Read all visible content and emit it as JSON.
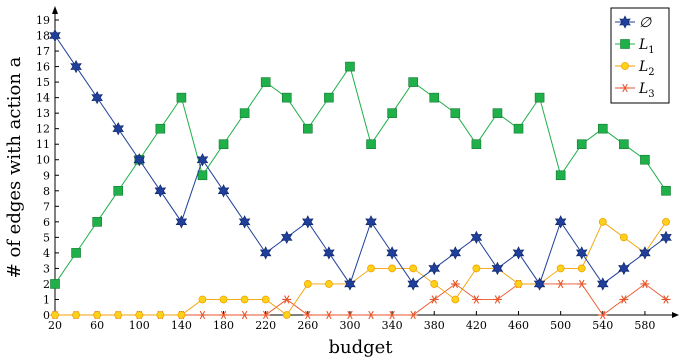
{
  "chart_data": {
    "type": "line",
    "xlabel": "budget",
    "ylabel": "# of edges with action a",
    "x": [
      20,
      40,
      60,
      80,
      100,
      120,
      140,
      160,
      180,
      200,
      220,
      240,
      260,
      280,
      300,
      320,
      340,
      360,
      380,
      400,
      420,
      440,
      460,
      480,
      500,
      520,
      540,
      560,
      580,
      600
    ],
    "xticks": [
      "20",
      "60",
      "100",
      "140",
      "180",
      "220",
      "260",
      "300",
      "340",
      "380",
      "420",
      "460",
      "500",
      "540",
      "580"
    ],
    "xlim": [
      20,
      600
    ],
    "ylim": [
      0,
      19
    ],
    "yticks": [
      "0",
      "1",
      "2",
      "3",
      "4",
      "5",
      "6",
      "7",
      "8",
      "9",
      "10",
      "11",
      "12",
      "13",
      "14",
      "15",
      "16",
      "17",
      "18",
      "19"
    ],
    "legend_position": "top-right",
    "series": [
      {
        "name": "∅",
        "color": "#1f3f9a",
        "marker": "star",
        "values": [
          18,
          16,
          14,
          12,
          10,
          8,
          6,
          10,
          8,
          6,
          4,
          5,
          6,
          4,
          2,
          6,
          4,
          2,
          3,
          4,
          5,
          3,
          4,
          2,
          6,
          4,
          2,
          3,
          4,
          5
        ]
      },
      {
        "name": "L1",
        "color": "#1fb04a",
        "marker": "square",
        "values": [
          2,
          4,
          6,
          8,
          10,
          12,
          14,
          9,
          11,
          13,
          15,
          14,
          12,
          14,
          16,
          11,
          13,
          15,
          14,
          13,
          11,
          13,
          12,
          14,
          9,
          11,
          12,
          11,
          10,
          8
        ]
      },
      {
        "name": "L2",
        "color": "#f2a100",
        "marker": "circle",
        "values": [
          0,
          0,
          0,
          0,
          0,
          0,
          0,
          1,
          1,
          1,
          1,
          0,
          2,
          2,
          2,
          3,
          3,
          3,
          2,
          1,
          3,
          3,
          2,
          2,
          3,
          3,
          6,
          5,
          4,
          6
        ]
      },
      {
        "name": "L3",
        "color": "#e8552a",
        "marker": "asterisk",
        "values": [
          0,
          0,
          0,
          0,
          0,
          0,
          0,
          0,
          0,
          0,
          0,
          1,
          0,
          0,
          0,
          0,
          0,
          0,
          1,
          2,
          1,
          1,
          2,
          2,
          2,
          2,
          0,
          1,
          2,
          1
        ]
      }
    ]
  }
}
